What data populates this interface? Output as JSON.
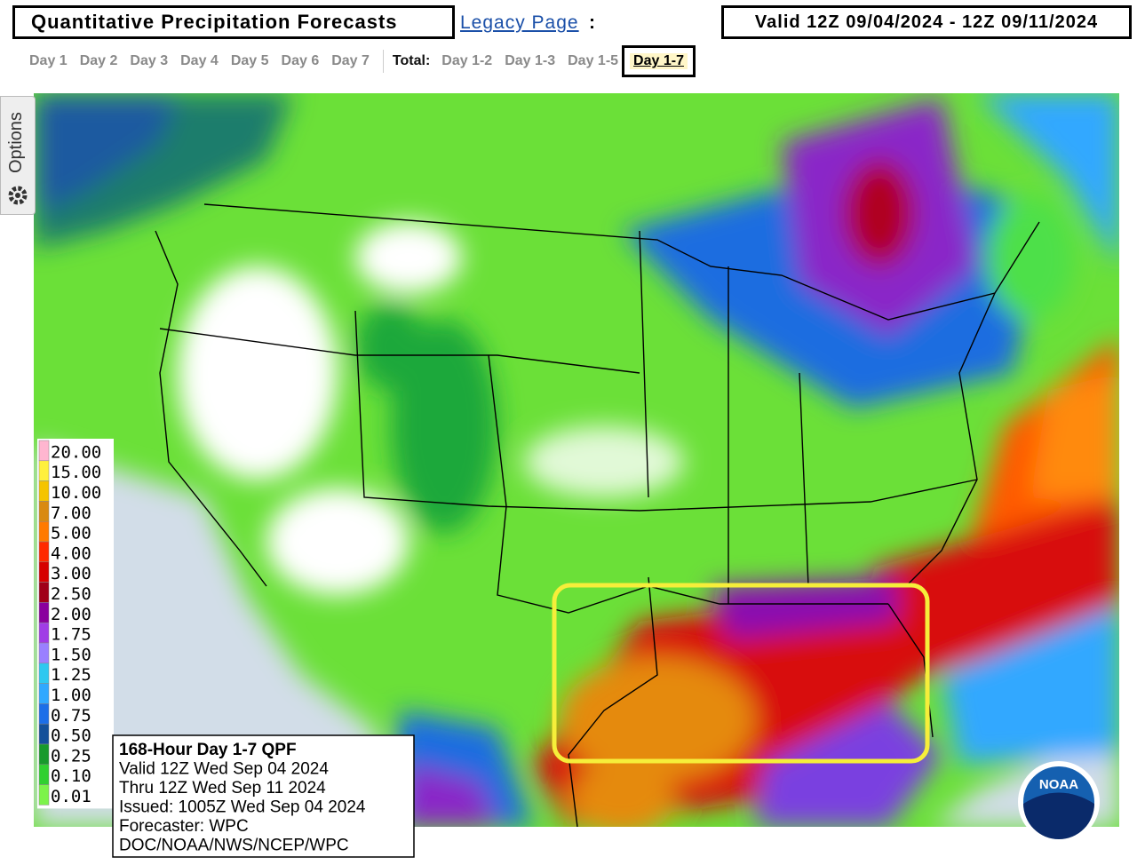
{
  "header": {
    "title": "Quantitative Precipitation Forecasts",
    "legacy_link": "Legacy Page",
    "separator": ":",
    "valid": "Valid 12Z 09/04/2024 - 12Z 09/11/2024"
  },
  "tabs": {
    "days": [
      "Day 1",
      "Day 2",
      "Day 3",
      "Day 4",
      "Day 5",
      "Day 6",
      "Day 7"
    ],
    "total_label": "Total:",
    "totals": [
      "Day 1-2",
      "Day 1-3",
      "Day 1-5",
      "Day 1-7"
    ]
  },
  "options": "Options",
  "legend": {
    "items": [
      {
        "label": "20.00",
        "color": "#ffb6d0"
      },
      {
        "label": "15.00",
        "color": "#fff03c"
      },
      {
        "label": "10.00",
        "color": "#f5c400"
      },
      {
        "label": "7.00",
        "color": "#d98a10"
      },
      {
        "label": "5.00",
        "color": "#ff7a00"
      },
      {
        "label": "4.00",
        "color": "#ff2a00"
      },
      {
        "label": "3.00",
        "color": "#d60000"
      },
      {
        "label": "2.50",
        "color": "#a00018"
      },
      {
        "label": "2.00",
        "color": "#8a009e"
      },
      {
        "label": "1.75",
        "color": "#a03ce6"
      },
      {
        "label": "1.50",
        "color": "#9a80ff"
      },
      {
        "label": "1.25",
        "color": "#2ec8f0"
      },
      {
        "label": "1.00",
        "color": "#30a8ff"
      },
      {
        "label": "0.75",
        "color": "#1c6ee8"
      },
      {
        "label": "0.50",
        "color": "#14509a"
      },
      {
        "label": "0.25",
        "color": "#189a2c"
      },
      {
        "label": "0.10",
        "color": "#30d030"
      },
      {
        "label": "0.01",
        "color": "#7cf34a"
      }
    ]
  },
  "info": {
    "lines": [
      "168-Hour Day 1-7 QPF",
      "Valid 12Z Wed Sep 04 2024",
      "Thru 12Z Wed Sep 11 2024",
      "Issued: 1005Z Wed Sep 04 2024",
      "Forecaster: WPC",
      "DOC/NOAA/NWS/NCEP/WPC"
    ]
  },
  "logo": "NOAA"
}
